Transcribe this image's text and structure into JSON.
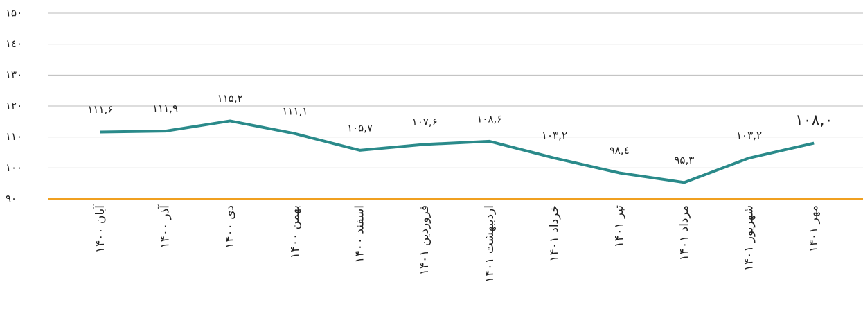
{
  "chart_data": {
    "type": "line",
    "categories": [
      "آبان ۱۴۰۰",
      "آذر ۱۴۰۰",
      "دی ۱۴۰۰",
      "بهمن ۱۴۰۰",
      "اسفند ۱۴۰۰",
      "فروردین ۱۴۰۱",
      "اردیبهشت ۱۴۰۱",
      "خرداد ۱۴۰۱",
      "تیر ۱۴۰۱",
      "مرداد ۱۴۰۱",
      "شهریور ۱۴۰۱",
      "مهر ۱۴۰۱"
    ],
    "series": [
      {
        "color": "#2a8a8a",
        "values": [
          111.6,
          111.9,
          115.2,
          111.1,
          105.7,
          107.6,
          108.6,
          103.2,
          98.4,
          95.3,
          103.2,
          108.0
        ],
        "value_labels": [
          "۱۱۱,۶",
          "۱۱۱,۹",
          "۱۱۵,۲",
          "۱۱۱,۱",
          "۱۰۵,۷",
          "۱۰۷,۶",
          "۱۰۸,۶",
          "۱۰۳,۲",
          "۹۸,٤",
          "۹۵,۳",
          "۱۰۳,۲",
          "۱۰۸,۰"
        ]
      }
    ],
    "ylim": [
      90,
      150
    ],
    "yticks": [
      {
        "value": 90,
        "label": "۹۰"
      },
      {
        "value": 100,
        "label": "۱۰۰"
      },
      {
        "value": 110,
        "label": "۱۱۰"
      },
      {
        "value": 120,
        "label": "۱۲۰"
      },
      {
        "value": 130,
        "label": "۱۳۰"
      },
      {
        "value": 140,
        "label": "۱٤۰"
      },
      {
        "value": 150,
        "label": "۱۵۰"
      }
    ],
    "grid": true,
    "axis_color": "#f0a020"
  }
}
